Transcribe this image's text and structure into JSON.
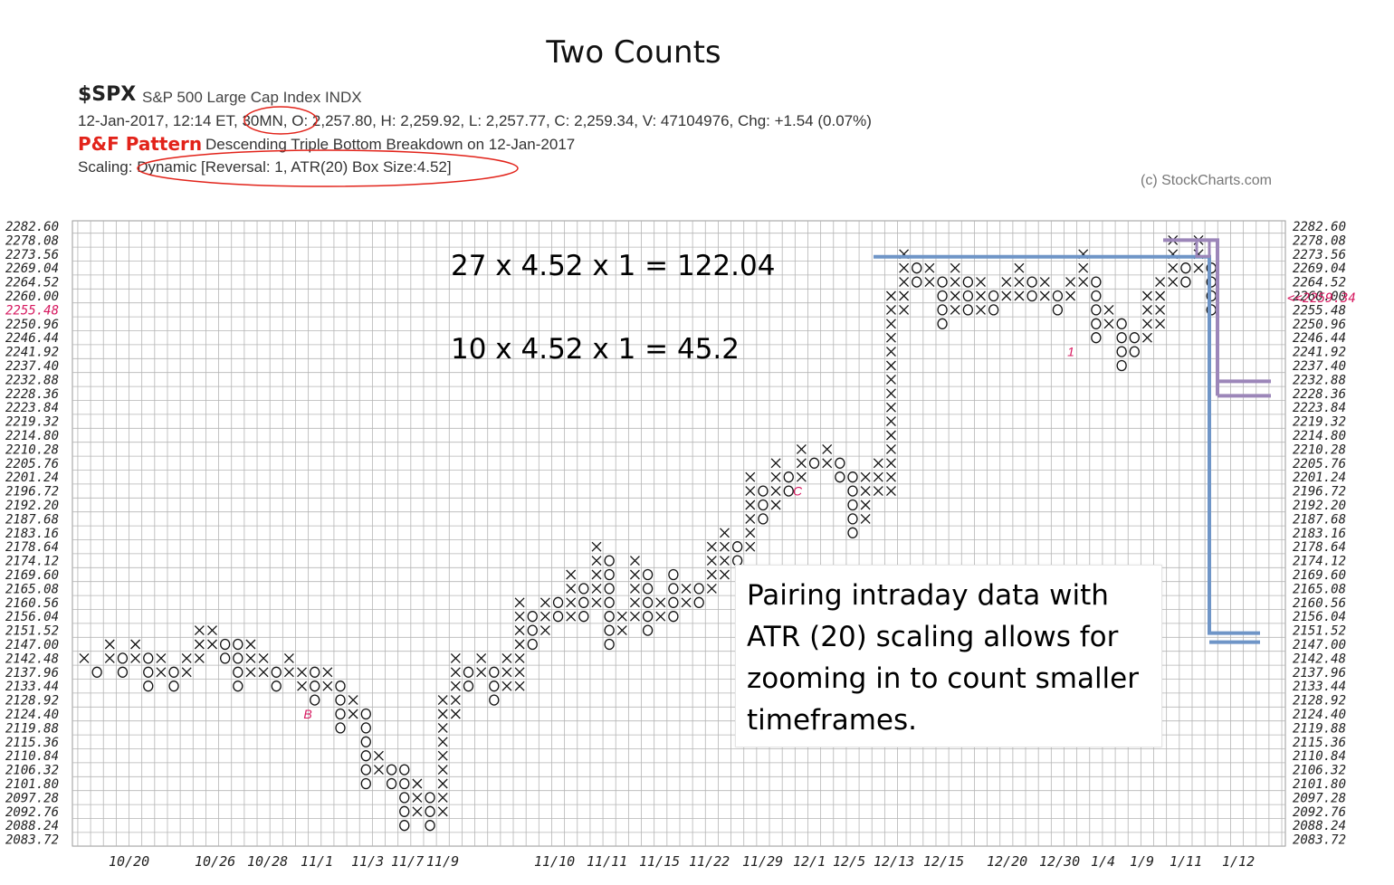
{
  "slide_title": "Two Counts",
  "header": {
    "symbol": "$SPX",
    "description": "S&P 500 Large Cap Index  INDX",
    "ohlc_line": "12-Jan-2017, 12:14 ET, 30MN, O: 2,257.80, H: 2,259.92, L: 2,257.77, C: 2,259.34, V: 47104976, Chg: +1.54 (0.07%)",
    "pattern_label": "P&F Pattern",
    "pattern_text": "Descending Triple Bottom Breakdown on 12-Jan-2017",
    "scaling_line": "Scaling: Dynamic [Reversal: 1, ATR(20) Box Size:4.52]",
    "watermark": "(c) StockCharts.com"
  },
  "colors": {
    "highlight_circle": "#e2231a",
    "count_line_blue": "#6f95c7",
    "count_line_purple": "#9c86b9",
    "last_price": "#d6185f",
    "grid": "#b5b5b5"
  },
  "counts": [
    {
      "text": "27 x 4.52 x 1 = 122.04"
    },
    {
      "text": "10 x 4.52 x 1 = 45.2"
    }
  ],
  "note": {
    "text": "Pairing intraday data with ATR (20) scaling allows for zooming in to count smaller timeframes."
  },
  "chart_data": {
    "type": "point-and-figure",
    "box_size": 4.52,
    "reversal": 1,
    "last_price": "2259.34",
    "last_price_label": "<<2259.34",
    "highlighted_price_label": "2255.48",
    "y_tick_labels": [
      "2282.60",
      "2278.08",
      "2273.56",
      "2269.04",
      "2264.52",
      "2260.00",
      "2255.48",
      "2250.96",
      "2246.44",
      "2241.92",
      "2237.40",
      "2232.88",
      "2228.36",
      "2223.84",
      "2219.32",
      "2214.80",
      "2210.28",
      "2205.76",
      "2201.24",
      "2196.72",
      "2192.20",
      "2187.68",
      "2183.16",
      "2178.64",
      "2174.12",
      "2169.60",
      "2165.08",
      "2160.56",
      "2156.04",
      "2151.52",
      "2147.00",
      "2142.48",
      "2137.96",
      "2133.44",
      "2128.92",
      "2124.40",
      "2119.88",
      "2115.36",
      "2110.84",
      "2106.32",
      "2101.80",
      "2097.28",
      "2092.76",
      "2088.24",
      "2083.72"
    ],
    "x_tick_labels": [
      "10/20",
      "10/26",
      "10/28",
      "11/1",
      "11/3",
      "11/7",
      "11/9",
      "11/10",
      "11/11",
      "11/15",
      "11/22",
      "11/29",
      "12/1",
      "12/5",
      "12/13",
      "12/15",
      "12/20",
      "12/30",
      "1/4",
      "1/9",
      "1/11",
      "1/12"
    ],
    "markers": [
      "B",
      "C",
      "1"
    ],
    "columns": [
      {
        "type": "X",
        "from": "2142.48",
        "to": "2142.48"
      },
      {
        "type": "O",
        "from": "2137.96",
        "to": "2137.96"
      },
      {
        "type": "X",
        "from": "2142.48",
        "to": "2147.00"
      },
      {
        "type": "O",
        "from": "2137.96",
        "to": "2142.48"
      },
      {
        "type": "X",
        "from": "2142.48",
        "to": "2147.00"
      },
      {
        "type": "O",
        "from": "2133.44",
        "to": "2142.48"
      },
      {
        "type": "X",
        "from": "2137.96",
        "to": "2142.48"
      },
      {
        "type": "O",
        "from": "2133.44",
        "to": "2137.96"
      },
      {
        "type": "X",
        "from": "2137.96",
        "to": "2142.48"
      },
      {
        "type": "X",
        "from": "2142.48",
        "to": "2151.52"
      },
      {
        "type": "X",
        "from": "2147.00",
        "to": "2151.52"
      },
      {
        "type": "O",
        "from": "2142.48",
        "to": "2147.00"
      },
      {
        "type": "O",
        "from": "2133.44",
        "to": "2147.00"
      },
      {
        "type": "X",
        "from": "2137.96",
        "to": "2147.00"
      },
      {
        "type": "X",
        "from": "2137.96",
        "to": "2142.48"
      },
      {
        "type": "O",
        "from": "2133.44",
        "to": "2137.96"
      },
      {
        "type": "X",
        "from": "2137.96",
        "to": "2142.48"
      },
      {
        "type": "X",
        "from": "2133.44",
        "to": "2137.96"
      },
      {
        "type": "O",
        "from": "2128.92",
        "to": "2137.96"
      },
      {
        "type": "X",
        "from": "2133.44",
        "to": "2137.96"
      },
      {
        "type": "O",
        "from": "2119.88",
        "to": "2133.44"
      },
      {
        "type": "X",
        "from": "2124.40",
        "to": "2128.92"
      },
      {
        "type": "O",
        "from": "2101.80",
        "to": "2124.40"
      },
      {
        "type": "X",
        "from": "2106.32",
        "to": "2110.84"
      },
      {
        "type": "O",
        "from": "2101.80",
        "to": "2106.32"
      },
      {
        "type": "O",
        "from": "2088.24",
        "to": "2106.32"
      },
      {
        "type": "X",
        "from": "2092.76",
        "to": "2101.80"
      },
      {
        "type": "O",
        "from": "2088.24",
        "to": "2097.28"
      },
      {
        "type": "X",
        "from": "2092.76",
        "to": "2128.92"
      },
      {
        "type": "X",
        "from": "2124.40",
        "to": "2142.48"
      },
      {
        "type": "O",
        "from": "2133.44",
        "to": "2137.96"
      },
      {
        "type": "X",
        "from": "2137.96",
        "to": "2142.48"
      },
      {
        "type": "O",
        "from": "2128.92",
        "to": "2137.96"
      },
      {
        "type": "X",
        "from": "2133.44",
        "to": "2142.48"
      },
      {
        "type": "X",
        "from": "2133.44",
        "to": "2160.56"
      },
      {
        "type": "O",
        "from": "2147.00",
        "to": "2156.04"
      },
      {
        "type": "X",
        "from": "2151.52",
        "to": "2160.56"
      },
      {
        "type": "O",
        "from": "2156.04",
        "to": "2160.56"
      },
      {
        "type": "X",
        "from": "2156.04",
        "to": "2169.60"
      },
      {
        "type": "O",
        "from": "2156.04",
        "to": "2165.08"
      },
      {
        "type": "X",
        "from": "2160.56",
        "to": "2178.64"
      },
      {
        "type": "O",
        "from": "2147.00",
        "to": "2174.12"
      },
      {
        "type": "X",
        "from": "2151.52",
        "to": "2156.04"
      },
      {
        "type": "X",
        "from": "2156.04",
        "to": "2174.12"
      },
      {
        "type": "O",
        "from": "2151.52",
        "to": "2169.60"
      },
      {
        "type": "X",
        "from": "2156.04",
        "to": "2160.56"
      },
      {
        "type": "O",
        "from": "2156.04",
        "to": "2169.60"
      },
      {
        "type": "X",
        "from": "2160.56",
        "to": "2165.08"
      },
      {
        "type": "O",
        "from": "2160.56",
        "to": "2165.08"
      },
      {
        "type": "X",
        "from": "2165.08",
        "to": "2178.64"
      },
      {
        "type": "X",
        "from": "2169.60",
        "to": "2183.16"
      },
      {
        "type": "O",
        "from": "2174.12",
        "to": "2178.64"
      },
      {
        "type": "X",
        "from": "2178.64",
        "to": "2201.24"
      },
      {
        "type": "O",
        "from": "2187.68",
        "to": "2196.72"
      },
      {
        "type": "X",
        "from": "2192.20",
        "to": "2205.76"
      },
      {
        "type": "O",
        "from": "2196.72",
        "to": "2201.24"
      },
      {
        "type": "X",
        "from": "2201.24",
        "to": "2210.28"
      },
      {
        "type": "O",
        "from": "2205.76",
        "to": "2205.76"
      },
      {
        "type": "X",
        "from": "2205.76",
        "to": "2210.28"
      },
      {
        "type": "O",
        "from": "2201.24",
        "to": "2205.76"
      },
      {
        "type": "O",
        "from": "2183.16",
        "to": "2201.24"
      },
      {
        "type": "X",
        "from": "2187.68",
        "to": "2201.24"
      },
      {
        "type": "X",
        "from": "2196.72",
        "to": "2205.76"
      },
      {
        "type": "X",
        "from": "2196.72",
        "to": "2260.00"
      },
      {
        "type": "X",
        "from": "2255.48",
        "to": "2273.56"
      },
      {
        "type": "O",
        "from": "2264.52",
        "to": "2269.04"
      },
      {
        "type": "X",
        "from": "2264.52",
        "to": "2269.04"
      },
      {
        "type": "O",
        "from": "2250.96",
        "to": "2264.52"
      },
      {
        "type": "X",
        "from": "2255.48",
        "to": "2269.04"
      },
      {
        "type": "O",
        "from": "2255.48",
        "to": "2264.52"
      },
      {
        "type": "X",
        "from": "2255.48",
        "to": "2264.52"
      },
      {
        "type": "O",
        "from": "2255.48",
        "to": "2260.00"
      },
      {
        "type": "X",
        "from": "2260.00",
        "to": "2264.52"
      },
      {
        "type": "X",
        "from": "2260.00",
        "to": "2269.04"
      },
      {
        "type": "O",
        "from": "2260.00",
        "to": "2264.52"
      },
      {
        "type": "X",
        "from": "2260.00",
        "to": "2264.52"
      },
      {
        "type": "O",
        "from": "2255.48",
        "to": "2260.00"
      },
      {
        "type": "X",
        "from": "2260.00",
        "to": "2264.52"
      },
      {
        "type": "X",
        "from": "2264.52",
        "to": "2273.56"
      },
      {
        "type": "O",
        "from": "2246.44",
        "to": "2264.52"
      },
      {
        "type": "X",
        "from": "2250.96",
        "to": "2255.48"
      },
      {
        "type": "O",
        "from": "2237.40",
        "to": "2250.96"
      },
      {
        "type": "O",
        "from": "2241.92",
        "to": "2246.44"
      },
      {
        "type": "X",
        "from": "2246.44",
        "to": "2260.00"
      },
      {
        "type": "X",
        "from": "2250.96",
        "to": "2264.52"
      },
      {
        "type": "X",
        "from": "2264.52",
        "to": "2278.08"
      },
      {
        "type": "O",
        "from": "2264.52",
        "to": "2269.04"
      },
      {
        "type": "X",
        "from": "2269.04",
        "to": "2278.08"
      },
      {
        "type": "O",
        "from": "2255.48",
        "to": "2269.04"
      }
    ],
    "count_lines": [
      {
        "color": "blue",
        "price": "2273.56",
        "target": "2151.52"
      },
      {
        "color": "purple",
        "price": "2278.08",
        "target": "2232.88"
      }
    ]
  }
}
